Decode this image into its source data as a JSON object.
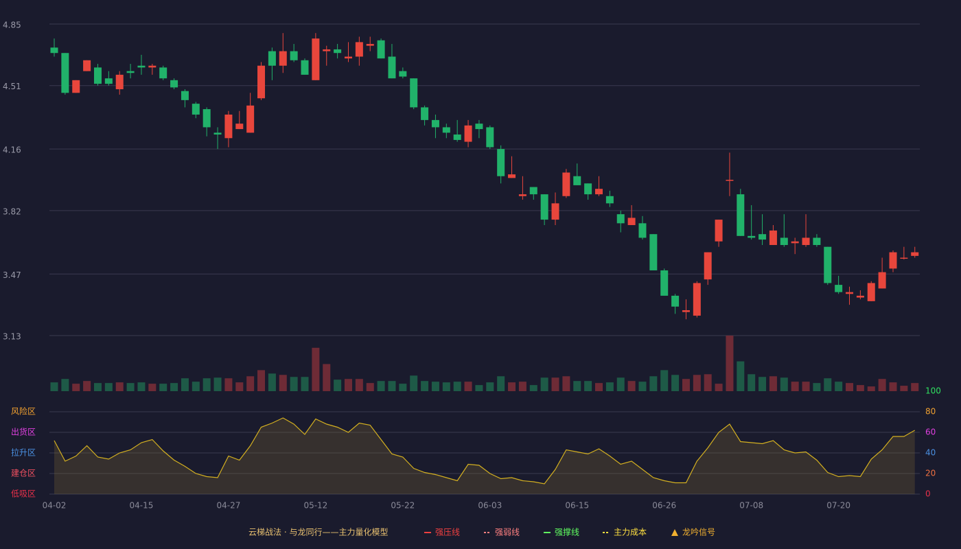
{
  "chart_data": [
    {
      "type": "candlestick",
      "categories": [
        "04-02",
        null,
        null,
        null,
        null,
        null,
        null,
        null,
        "04-15",
        null,
        null,
        null,
        null,
        null,
        null,
        null,
        "04-27",
        null,
        null,
        null,
        null,
        null,
        null,
        null,
        "05-12",
        null,
        null,
        null,
        null,
        null,
        null,
        null,
        "05-22",
        null,
        null,
        null,
        null,
        null,
        null,
        null,
        "06-03",
        null,
        null,
        null,
        null,
        null,
        null,
        null,
        "06-15",
        null,
        null,
        null,
        null,
        null,
        null,
        null,
        "06-26",
        null,
        null,
        null,
        null,
        null,
        null,
        null,
        "07-08",
        null,
        null,
        null,
        null,
        null,
        null,
        null,
        "07-20",
        null,
        null,
        null,
        null,
        null,
        null,
        null
      ],
      "open": [
        4.72,
        4.69,
        4.47,
        4.59,
        4.61,
        4.55,
        4.49,
        4.59,
        4.62,
        4.61,
        4.61,
        4.54,
        4.48,
        4.41,
        4.38,
        4.25,
        4.22,
        4.27,
        4.25,
        4.44,
        4.7,
        4.62,
        4.7,
        4.65,
        4.54,
        4.7,
        4.71,
        4.66,
        4.67,
        4.73,
        4.76,
        4.67,
        4.59,
        4.55,
        4.39,
        4.32,
        4.28,
        4.24,
        4.2,
        4.3,
        4.28,
        4.16,
        4.0,
        3.9,
        3.95,
        3.91,
        3.77,
        3.9,
        4.01,
        3.97,
        3.91,
        3.9,
        3.8,
        3.74,
        3.75,
        3.69,
        3.49,
        3.35,
        3.26,
        3.24,
        3.44,
        3.65,
        3.99,
        3.91,
        3.68,
        3.69,
        3.63,
        3.67,
        3.64,
        3.63,
        3.67,
        3.62,
        3.41,
        3.36,
        3.34,
        3.32,
        3.39,
        3.5,
        3.56,
        3.57
      ],
      "high": [
        4.77,
        4.69,
        4.54,
        4.65,
        4.63,
        4.59,
        4.59,
        4.63,
        4.68,
        4.63,
        4.62,
        4.55,
        4.49,
        4.42,
        4.39,
        4.28,
        4.37,
        4.37,
        4.47,
        4.64,
        4.72,
        4.8,
        4.74,
        4.66,
        4.8,
        4.73,
        4.74,
        4.75,
        4.78,
        4.78,
        4.77,
        4.74,
        4.61,
        4.55,
        4.4,
        4.35,
        4.3,
        4.32,
        4.32,
        4.32,
        4.29,
        4.18,
        4.12,
        4.01,
        3.95,
        3.91,
        3.92,
        4.05,
        4.08,
        3.97,
        4.01,
        3.93,
        3.82,
        3.85,
        3.79,
        3.69,
        3.5,
        3.36,
        3.33,
        3.43,
        3.59,
        3.77,
        4.14,
        3.94,
        3.85,
        3.8,
        3.74,
        3.8,
        3.67,
        3.8,
        3.69,
        3.62,
        3.46,
        3.4,
        3.38,
        3.43,
        3.56,
        3.6,
        3.62,
        3.62
      ],
      "low": [
        4.67,
        4.46,
        4.47,
        4.59,
        4.51,
        4.51,
        4.46,
        4.55,
        4.57,
        4.57,
        4.54,
        4.49,
        4.39,
        4.33,
        4.23,
        4.16,
        4.17,
        4.27,
        4.25,
        4.43,
        4.54,
        4.58,
        4.64,
        4.57,
        4.54,
        4.62,
        4.66,
        4.64,
        4.62,
        4.7,
        4.66,
        4.55,
        4.55,
        4.38,
        4.29,
        4.22,
        4.22,
        4.2,
        4.17,
        4.22,
        4.16,
        3.97,
        4.0,
        3.88,
        3.88,
        3.74,
        3.74,
        3.89,
        3.96,
        3.88,
        3.9,
        3.84,
        3.7,
        3.74,
        3.66,
        3.49,
        3.35,
        3.25,
        3.22,
        3.23,
        3.41,
        3.62,
        3.9,
        3.68,
        3.66,
        3.63,
        3.63,
        3.62,
        3.58,
        3.62,
        3.62,
        3.41,
        3.36,
        3.3,
        3.33,
        3.32,
        3.39,
        3.48,
        3.55,
        3.56
      ],
      "close": [
        4.69,
        4.47,
        4.54,
        4.65,
        4.52,
        4.52,
        4.57,
        4.58,
        4.61,
        4.62,
        4.55,
        4.5,
        4.43,
        4.35,
        4.28,
        4.24,
        4.35,
        4.3,
        4.4,
        4.62,
        4.62,
        4.7,
        4.65,
        4.57,
        4.77,
        4.71,
        4.69,
        4.67,
        4.75,
        4.74,
        4.66,
        4.55,
        4.56,
        4.39,
        4.32,
        4.28,
        4.25,
        4.21,
        4.29,
        4.27,
        4.17,
        4.01,
        4.02,
        3.91,
        3.91,
        3.77,
        3.86,
        4.03,
        3.96,
        3.91,
        3.94,
        3.86,
        3.75,
        3.78,
        3.67,
        3.49,
        3.35,
        3.29,
        3.27,
        3.42,
        3.59,
        3.77,
        3.99,
        3.68,
        3.67,
        3.66,
        3.71,
        3.63,
        3.65,
        3.67,
        3.63,
        3.42,
        3.37,
        3.37,
        3.35,
        3.42,
        3.48,
        3.59,
        3.56,
        3.59
      ],
      "up_color": "#e8463c",
      "down_color": "#21b26a",
      "ylim": [
        3.13,
        4.85
      ],
      "yticks": [
        3.13,
        3.47,
        3.82,
        4.16,
        4.51,
        4.85
      ],
      "grid": true
    },
    {
      "type": "bar",
      "values": [
        13,
        18,
        11,
        15,
        12,
        12,
        13,
        12,
        13,
        11,
        11,
        12,
        19,
        14,
        19,
        20,
        19,
        13,
        22,
        31,
        26,
        24,
        21,
        21,
        64,
        40,
        17,
        18,
        18,
        12,
        15,
        15,
        11,
        23,
        15,
        14,
        13,
        14,
        14,
        9,
        13,
        22,
        13,
        14,
        9,
        20,
        20,
        22,
        15,
        15,
        12,
        13,
        20,
        15,
        14,
        22,
        31,
        24,
        18,
        24,
        25,
        11,
        82,
        44,
        25,
        21,
        22,
        20,
        14,
        14,
        12,
        19,
        14,
        12,
        9,
        7,
        18,
        13,
        8,
        12
      ],
      "up_color": "#6e2b36",
      "down_color": "#1e5a47"
    },
    {
      "type": "area",
      "values": [
        52,
        32,
        37,
        47,
        36,
        34,
        40,
        43,
        50,
        53,
        42,
        33,
        27,
        20,
        17,
        16,
        37,
        33,
        47,
        65,
        69,
        74,
        68,
        58,
        73,
        68,
        65,
        60,
        69,
        67,
        53,
        39,
        36,
        25,
        21,
        19,
        16,
        13,
        29,
        28,
        20,
        15,
        16,
        13,
        12,
        10,
        24,
        43,
        41,
        39,
        44,
        37,
        29,
        32,
        24,
        16,
        13,
        11,
        11,
        32,
        45,
        60,
        68,
        51,
        50,
        49,
        52,
        43,
        40,
        41,
        33,
        21,
        17,
        18,
        17,
        34,
        43,
        56,
        56,
        62
      ],
      "color": "#d4b020",
      "ylim": [
        0,
        100
      ],
      "yticks": [
        {
          "value": 0,
          "color": "#e8304a"
        },
        {
          "value": 20,
          "color": "#f07040"
        },
        {
          "value": 40,
          "color": "#4a90e2"
        },
        {
          "value": 60,
          "color": "#e040e0"
        },
        {
          "value": 80,
          "color": "#f0a030"
        },
        {
          "value": 100,
          "color": "#30e060"
        }
      ],
      "zones": [
        {
          "value": 80,
          "label": "风险区",
          "color": "#f0a030"
        },
        {
          "value": 60,
          "label": "出货区",
          "color": "#e040e0"
        },
        {
          "value": 40,
          "label": "拉升区",
          "color": "#4a90e2"
        },
        {
          "value": 20,
          "label": "建仓区",
          "color": "#f05060"
        },
        {
          "value": 0,
          "label": "低吸区",
          "color": "#e8304a"
        }
      ],
      "grid": true,
      "legend_title": "云梯战法 · 与龙同行——主力量化模型",
      "legend": [
        {
          "name": "强压线",
          "color": "#f04040",
          "style": "solid"
        },
        {
          "name": "强弱线",
          "color": "#ff8080",
          "style": "dashed"
        },
        {
          "name": "强撑线",
          "color": "#60ff60",
          "style": "solid"
        },
        {
          "name": "主力成本",
          "color": "#ffe040",
          "style": "dashed"
        },
        {
          "name": "龙吟信号",
          "color": "#f0b030",
          "style": "triangle"
        }
      ]
    }
  ]
}
